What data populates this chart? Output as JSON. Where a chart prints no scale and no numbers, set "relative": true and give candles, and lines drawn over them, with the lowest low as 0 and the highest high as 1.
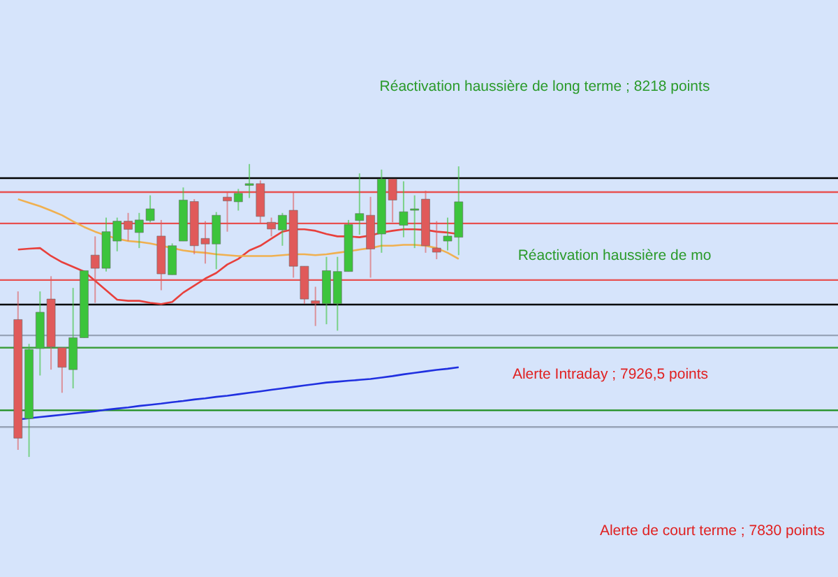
{
  "chart_data": {
    "type": "candlestick",
    "relative": true,
    "categories": [
      null,
      null,
      null,
      null,
      null,
      null,
      null,
      null,
      null,
      null,
      null,
      null,
      null,
      null,
      null,
      null,
      null,
      null,
      null,
      null,
      null,
      null,
      null,
      null,
      null,
      null,
      null,
      null,
      null,
      null,
      null,
      null,
      null,
      null,
      null,
      null,
      null,
      null,
      null,
      null,
      null
    ],
    "ohlc": [
      [
        0.469,
        0.565,
        0.024,
        0.064
      ],
      [
        0.131,
        0.386,
        0,
        0.367
      ],
      [
        0.37,
        0.565,
        0.278,
        0.494
      ],
      [
        0.539,
        0.617,
        0.298,
        0.376
      ],
      [
        0.373,
        0.373,
        0.219,
        0.306
      ],
      [
        0.298,
        0.577,
        0.234,
        0.407
      ],
      [
        0.407,
        0.636,
        0.407,
        0.636
      ],
      [
        0.689,
        0.753,
        0.526,
        0.644
      ],
      [
        0.644,
        0.817,
        0.633,
        0.769
      ],
      [
        0.737,
        0.817,
        0.702,
        0.805
      ],
      [
        0.805,
        0.833,
        0.737,
        0.777
      ],
      [
        0.766,
        0.833,
        0.713,
        0.809
      ],
      [
        0.807,
        0.893,
        0.801,
        0.847
      ],
      [
        0.754,
        0.809,
        0.569,
        0.625
      ],
      [
        0.622,
        0.729,
        0.622,
        0.721
      ],
      [
        0.737,
        0.92,
        0.737,
        0.877
      ],
      [
        0.872,
        0.88,
        0.692,
        0.721
      ],
      [
        0.746,
        0.805,
        0.66,
        0.727
      ],
      [
        0.727,
        0.836,
        0.641,
        0.825
      ],
      [
        0.887,
        0.904,
        0.769,
        0.874
      ],
      [
        0.871,
        0.915,
        0.841,
        0.9
      ],
      [
        0.927,
        1,
        0.884,
        0.933
      ],
      [
        0.933,
        0.944,
        0.797,
        0.821
      ],
      [
        0.801,
        0.817,
        0.753,
        0.778
      ],
      [
        0.775,
        0.833,
        0.721,
        0.825
      ],
      [
        0.842,
        0.904,
        0.612,
        0.651
      ],
      [
        0.651,
        0.651,
        0.522,
        0.539
      ],
      [
        0.533,
        0.581,
        0.447,
        0.523
      ],
      [
        0.523,
        0.683,
        0.453,
        0.636
      ],
      [
        0.523,
        0.683,
        0.431,
        0.633
      ],
      [
        0.633,
        0.809,
        0.633,
        0.793
      ],
      [
        0.807,
        0.968,
        0.759,
        0.831
      ],
      [
        0.825,
        0.888,
        0.612,
        0.71
      ],
      [
        0.761,
        0.981,
        0.697,
        0.949
      ],
      [
        0.949,
        0.949,
        0.801,
        0.877
      ],
      [
        0.791,
        0.941,
        0.75,
        0.837
      ],
      [
        0.842,
        0.893,
        0.713,
        0.847
      ],
      [
        0.88,
        0.909,
        0.697,
        0.721
      ],
      [
        0.713,
        0.805,
        0.675,
        0.699
      ],
      [
        0.737,
        0.817,
        0.705,
        0.754
      ],
      [
        0.75,
        0.992,
        0.689,
        0.871
      ]
    ],
    "series": [
      {
        "type": "line",
        "color": "#e8403c",
        "values": [
          0.708,
          0.711,
          0.713,
          0.686,
          0.665,
          0.649,
          0.633,
          0.601,
          0.569,
          0.537,
          0.533,
          0.533,
          0.526,
          0.522,
          0.529,
          0.561,
          0.585,
          0.609,
          0.628,
          0.657,
          0.676,
          0.705,
          0.721,
          0.745,
          0.769,
          0.777,
          0.777,
          0.772,
          0.761,
          0.753,
          0.753,
          0.75,
          0.756,
          0.766,
          0.772,
          0.777,
          0.777,
          0.775,
          0.769,
          0.766,
          0.761
        ]
      },
      {
        "type": "line",
        "color": "#f0b050",
        "values": [
          0.88,
          0.868,
          0.856,
          0.841,
          0.825,
          0.804,
          0.785,
          0.769,
          0.756,
          0.745,
          0.737,
          0.734,
          0.729,
          0.721,
          0.713,
          0.705,
          0.7,
          0.697,
          0.692,
          0.689,
          0.686,
          0.686,
          0.686,
          0.686,
          0.689,
          0.692,
          0.692,
          0.689,
          0.692,
          0.697,
          0.702,
          0.708,
          0.713,
          0.721,
          0.721,
          0.724,
          0.724,
          0.721,
          0.713,
          0.697,
          0.676
        ]
      },
      {
        "type": "line",
        "color": "#2030e0",
        "values": [
          0.128,
          0.132,
          0.136,
          0.14,
          0.144,
          0.148,
          0.152,
          0.156,
          0.161,
          0.165,
          0.169,
          0.174,
          0.178,
          0.182,
          0.187,
          0.191,
          0.196,
          0.2,
          0.205,
          0.209,
          0.214,
          0.219,
          0.224,
          0.229,
          0.234,
          0.239,
          0.244,
          0.249,
          0.254,
          0.257,
          0.26,
          0.263,
          0.266,
          0.271,
          0.276,
          0.282,
          0.287,
          0.292,
          0.297,
          0.301,
          0.306
        ]
      }
    ],
    "ref_lines": [
      {
        "axis": "y",
        "value": 0.952,
        "color": "#000000"
      },
      {
        "axis": "y",
        "value": 0.52,
        "color": "#000000"
      },
      {
        "axis": "y",
        "value": 0.904,
        "color": "#e85050"
      },
      {
        "axis": "y",
        "value": 0.797,
        "color": "#e85050"
      },
      {
        "axis": "y",
        "value": 0.604,
        "color": "#e85050"
      },
      {
        "axis": "y",
        "value": 0.415,
        "color": "#98a4b8"
      },
      {
        "axis": "y",
        "value": 0.373,
        "color": "#40a040"
      },
      {
        "axis": "y",
        "value": 0.159,
        "color": "#1f8f1f"
      },
      {
        "axis": "y",
        "value": 0.102,
        "color": "#98a4b8"
      }
    ],
    "annotations": [
      "Réactivation haussière de long terme  ; 8218 points",
      "Réactivation haussière de mo",
      "Alerte Intraday ; 7926,5 points",
      "Alerte de court terme ; 7830 points"
    ]
  }
}
